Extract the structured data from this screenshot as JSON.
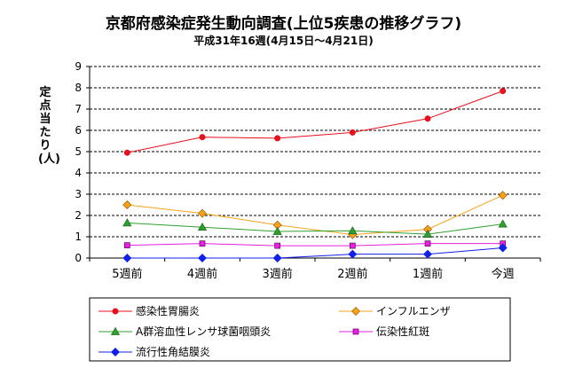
{
  "chart_data": {
    "type": "line",
    "title": "京都府感染症発生動向調査(上位5疾患の推移グラフ)",
    "subtitle": "平成31年16週(4月15日〜4月21日)",
    "ylabel": "定点当たり(人)",
    "xlabel": "",
    "categories": [
      "5週前",
      "4週前",
      "3週前",
      "2週前",
      "1週前",
      "今週"
    ],
    "yticks": [
      "0",
      "1",
      "2",
      "3",
      "4",
      "5",
      "6",
      "7",
      "8",
      "9"
    ],
    "ylim": [
      0,
      9
    ],
    "grid": "horizontal",
    "legend_position": "bottom",
    "series": [
      {
        "name": "感染性胃腸炎",
        "values": [
          4.95,
          5.68,
          5.63,
          5.9,
          6.55,
          7.85
        ],
        "color": "#e8101c",
        "marker": "circle"
      },
      {
        "name": "インフルエンザ",
        "values": [
          2.5,
          2.1,
          1.55,
          1.1,
          1.35,
          2.95
        ],
        "color": "#f5a21a",
        "marker": "diamond"
      },
      {
        "name": "A群溶血性レンサ球菌咽頭炎",
        "values": [
          1.65,
          1.45,
          1.25,
          1.28,
          1.12,
          1.6
        ],
        "color": "#2ea02e",
        "marker": "triangle"
      },
      {
        "name": "伝染性紅斑",
        "values": [
          0.6,
          0.68,
          0.58,
          0.58,
          0.68,
          0.68
        ],
        "color": "#e820e0",
        "marker": "square"
      },
      {
        "name": "流行性角結膜炎",
        "values": [
          0.0,
          0.0,
          0.0,
          0.18,
          0.18,
          0.48
        ],
        "color": "#1020e8",
        "marker": "diamond"
      }
    ]
  }
}
